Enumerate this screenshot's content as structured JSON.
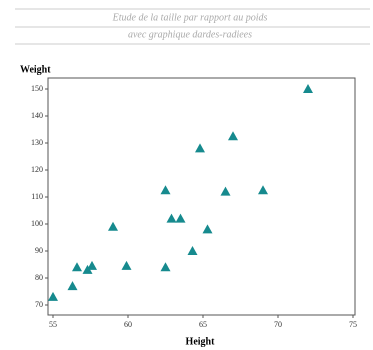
{
  "chart_data": {
    "type": "scatter",
    "title": "Etude de la taille par rapport au poids",
    "subtitle": "avec graphique dardes-radiees",
    "xlabel": "Height",
    "ylabel": "Weight",
    "color": "#168a8e",
    "x": [
      55.0,
      56.3,
      56.6,
      57.3,
      57.6,
      59.0,
      59.9,
      62.5,
      62.5,
      62.9,
      63.5,
      64.3,
      64.8,
      65.3,
      66.5,
      67.0,
      69.0,
      72.0
    ],
    "values": [
      73,
      77,
      84,
      83,
      84.5,
      99,
      84.5,
      112.5,
      84,
      102,
      102,
      90,
      128,
      98,
      112,
      132.5,
      112.5,
      150
    ],
    "xlim": [
      55,
      75
    ],
    "xticks": [
      55,
      60,
      65,
      70,
      75
    ],
    "ylim": [
      70,
      150
    ],
    "yticks": [
      70,
      80,
      90,
      100,
      110,
      120,
      130,
      140,
      150
    ]
  }
}
